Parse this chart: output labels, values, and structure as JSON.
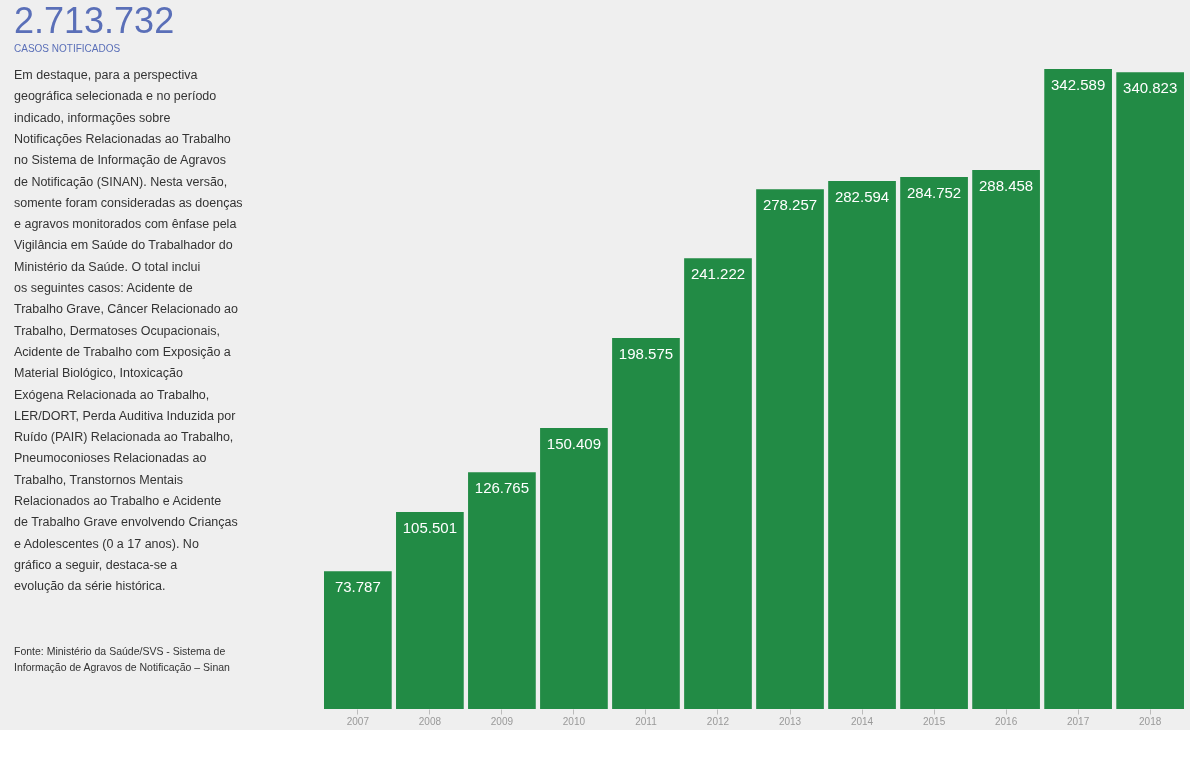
{
  "chart_data": {
    "type": "bar",
    "title": "2.713.732",
    "subtitle": "CASOS NOTIFICADOS",
    "categories": [
      "2007",
      "2008",
      "2009",
      "2010",
      "2011",
      "2012",
      "2013",
      "2014",
      "2015",
      "2016",
      "2017",
      "2018"
    ],
    "values": [
      73787,
      105501,
      126765,
      150409,
      198575,
      241222,
      278257,
      282594,
      284752,
      288458,
      342589,
      340823
    ],
    "value_labels": [
      "73.787",
      "105.501",
      "126.765",
      "150.409",
      "198.575",
      "241.222",
      "278.257",
      "282.594",
      "284.752",
      "288.458",
      "342.589",
      "340.823"
    ],
    "color": "#228b45",
    "annotations": [
      "Em destaque, para a perspectiva geográfica selecionada e no período indicado, informações sobre Notificações Relacionadas ao Trabalho no Sistema de Informação de Agravos de Notificação (SINAN). Nesta versão, somente foram consideradas as doenças e agravos monitorados com ênfase pela Vigilância em Saúde do Trabalhador do Ministério da Saúde. O total inclui os seguintes casos: Acidente de Trabalho Grave, Câncer Relacionado ao Trabalho, Dermatoses Ocupacionais, Acidente de Trabalho com Exposição a Material Biológico, Intoxicação Exógena Relacionada ao Trabalho, LER/DORT, Perda Auditiva Induzida por Ruído (PAIR) Relacionada ao Trabalho, Pneumoconioses Relacionadas ao Trabalho, Transtornos Mentais Relacionados ao Trabalho e Acidente de Trabalho Grave envolvendo Crianças e Adolescentes (0 a 17 anos). No gráfico a seguir, destaca-se a evolução da série histórica.",
      "Fonte: Ministério da Saúde/SVS - Sistema de Informação de Agravos de Notificação – Sinan"
    ],
    "grid": false
  }
}
